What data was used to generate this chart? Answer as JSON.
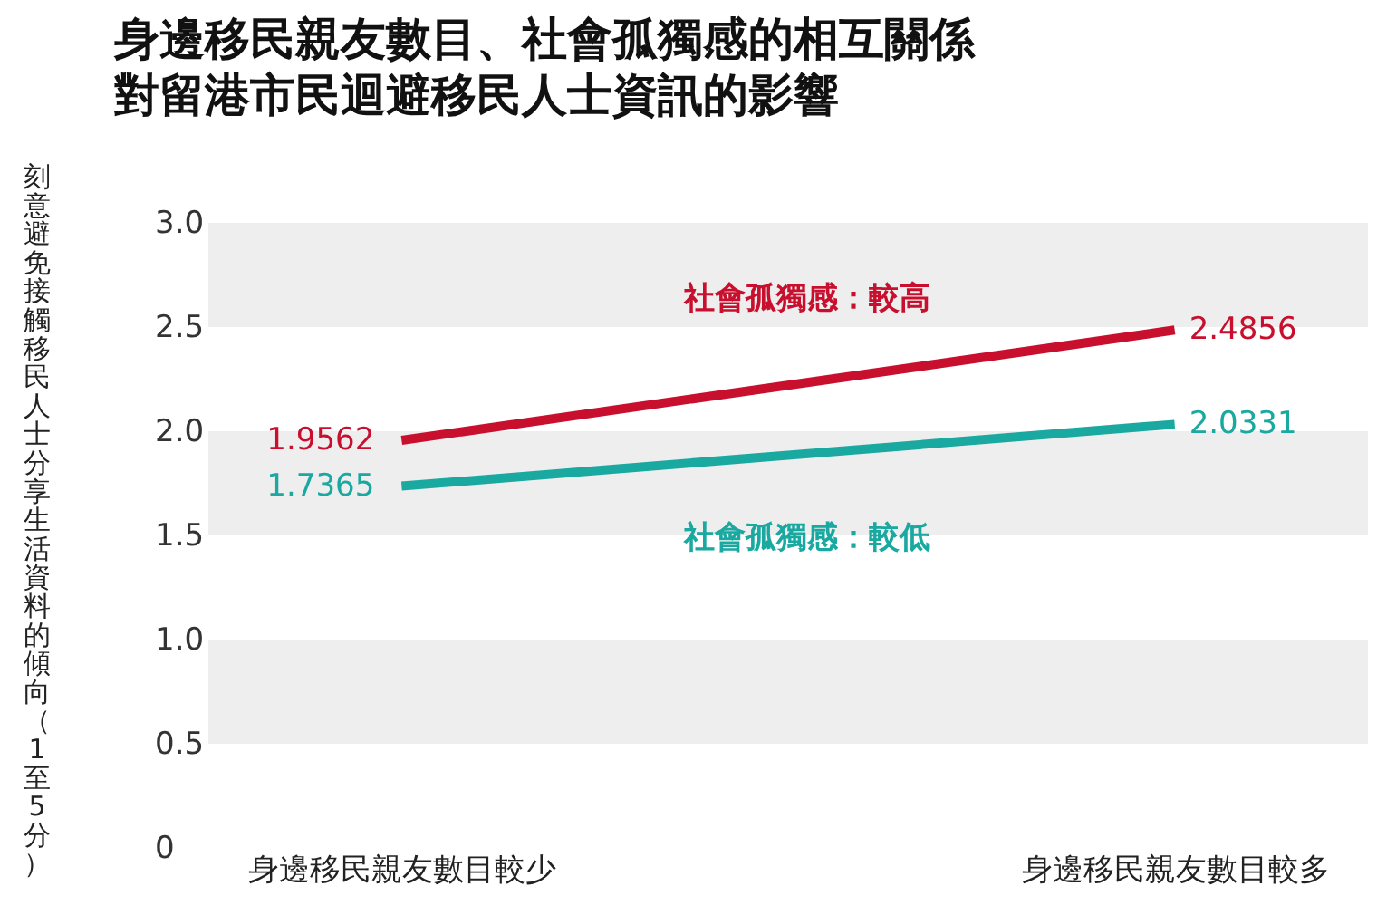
{
  "chart_data": {
    "type": "line",
    "title": "身邊移民親友數目、社會孤獨感的相互關係",
    "subtitle": "對留港市民迴避移民人士資訊的影響",
    "ylabel": "刻意避免接觸移民人士分享生活資料的傾向（1至5分）",
    "categories": [
      "身邊移民親友數目較少",
      "身邊移民親友數目較多"
    ],
    "series": [
      {
        "name": "社會孤獨感：較高",
        "color": "#c8102e",
        "values": [
          1.9562,
          2.4856
        ]
      },
      {
        "name": "社會孤獨感：較低",
        "color": "#1aa9a0",
        "values": [
          1.7365,
          2.0331
        ]
      }
    ],
    "ylim": [
      0,
      3
    ],
    "yticks": [
      {
        "value": 0,
        "label": "0"
      },
      {
        "value": 0.5,
        "label": "0.5"
      },
      {
        "value": 1,
        "label": "1.0"
      },
      {
        "value": 1.5,
        "label": "1.5"
      },
      {
        "value": 2,
        "label": "2.0"
      },
      {
        "value": 2.5,
        "label": "2.5"
      },
      {
        "value": 3,
        "label": "3.0"
      }
    ],
    "bands": [
      {
        "axis": "y",
        "from": 0.5,
        "to": 1,
        "color": "#eeeeee"
      },
      {
        "axis": "y",
        "from": 1.5,
        "to": 2,
        "color": "#eeeeee"
      },
      {
        "axis": "y",
        "from": 2.5,
        "to": 3,
        "color": "#eeeeee"
      }
    ],
    "data_labels": true,
    "marker": "none",
    "line_style": "solid"
  }
}
